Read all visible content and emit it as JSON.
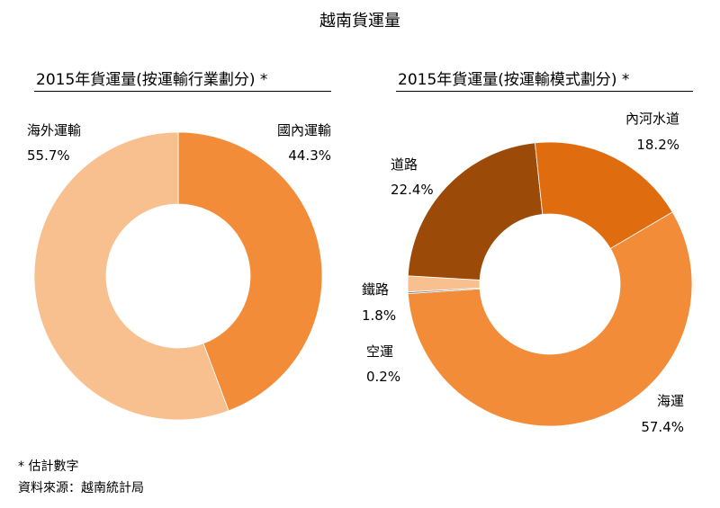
{
  "title": "越南貨運量",
  "footnotes": {
    "estimate": "* 估計數字",
    "source": "資料來源：越南統計局"
  },
  "colors": {
    "light": "#f9c08f",
    "orange": "#f28c38",
    "dark_orange": "#e06c10",
    "brown": "#9c4a08",
    "peach": "#f9c08f",
    "grey": "#7f8a99"
  },
  "chart_data": [
    {
      "type": "pie",
      "title": "2015年貨運量(按運輸行業劃分) *",
      "slices": [
        {
          "label": "國內運輸",
          "value": 44.3,
          "value_label": "44.3%",
          "color": "#f28c38"
        },
        {
          "label": "海外運輸",
          "value": 55.7,
          "value_label": "55.7%",
          "color": "#f9c08f"
        }
      ]
    },
    {
      "type": "pie",
      "title": "2015年貨運量(按運輸模式劃分) *",
      "slices": [
        {
          "label": "海運",
          "value": 57.4,
          "value_label": "57.4%",
          "color": "#f28c38"
        },
        {
          "label": "空運",
          "value": 0.2,
          "value_label": "0.2%",
          "color": "#7f8a99"
        },
        {
          "label": "鐵路",
          "value": 1.8,
          "value_label": "1.8%",
          "color": "#f9c08f"
        },
        {
          "label": "道路",
          "value": 22.4,
          "value_label": "22.4%",
          "color": "#9c4a08"
        },
        {
          "label": "內河水道",
          "value": 18.2,
          "value_label": "18.2%",
          "color": "#e06c10"
        }
      ]
    }
  ]
}
